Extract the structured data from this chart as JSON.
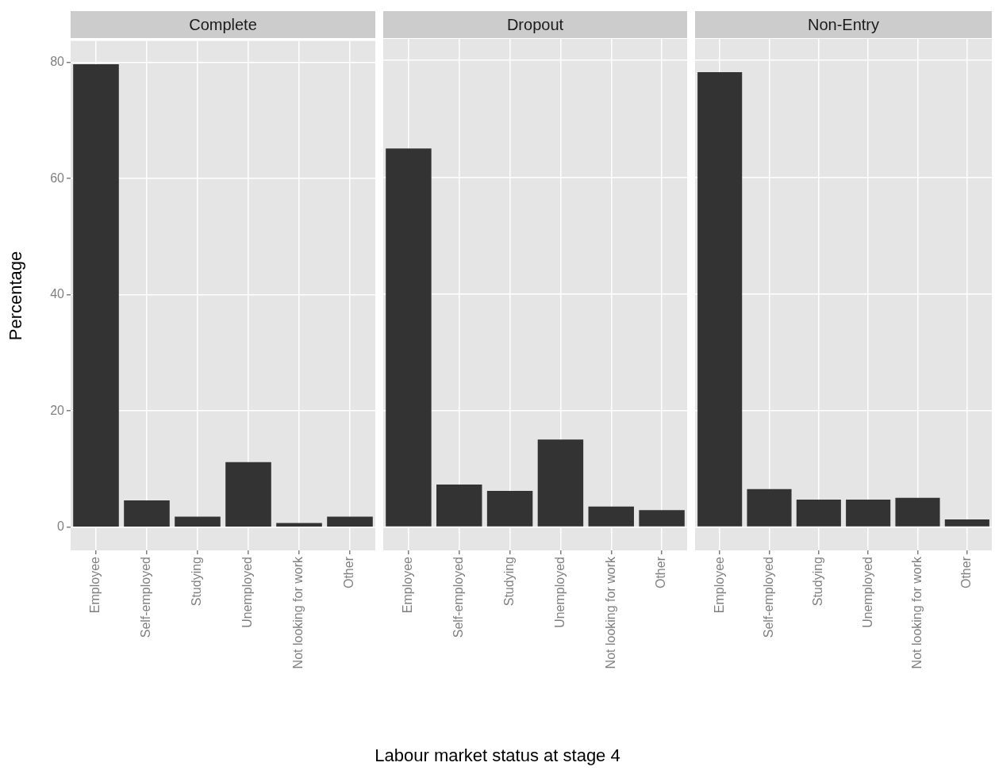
{
  "chart_data": [
    {
      "type": "bar",
      "title": "Complete",
      "ylabel": "Percentage",
      "categories": [
        "Employee",
        "Self-employed",
        "Studying",
        "Unemployed",
        "Not looking for work",
        "Other"
      ],
      "values": [
        79.7,
        4.6,
        1.8,
        11.2,
        0.7,
        1.8
      ],
      "color": "#333333",
      "ylim": [
        -4,
        83.7
      ],
      "yticks": [
        0,
        20,
        40,
        60,
        80
      ],
      "grid": true
    },
    {
      "type": "bar",
      "title": "Dropout",
      "xlabel": "Labour market status at stage 4",
      "categories": [
        "Employee",
        "Self-employed",
        "Studying",
        "Unemployed",
        "Not looking for work",
        "Other"
      ],
      "values": [
        64.9,
        7.3,
        6.2,
        15.0,
        3.5,
        2.9
      ],
      "color": "#333333",
      "ylim": [
        -4,
        83.7
      ],
      "yticks": [
        0,
        20,
        40,
        60,
        80
      ],
      "grid": true,
      "tick_labels": "x"
    },
    {
      "type": "bar",
      "title": "Non-Entry",
      "categories": [
        "Employee",
        "Self-employed",
        "Studying",
        "Unemployed",
        "Not looking for work",
        "Other"
      ],
      "values": [
        78.0,
        6.5,
        4.7,
        4.7,
        5.0,
        1.3
      ],
      "color": "#333333",
      "ylim": [
        -4,
        83.7
      ],
      "yticks": [
        0,
        20,
        40,
        60,
        80
      ],
      "grid": true,
      "tick_labels": "x"
    }
  ]
}
